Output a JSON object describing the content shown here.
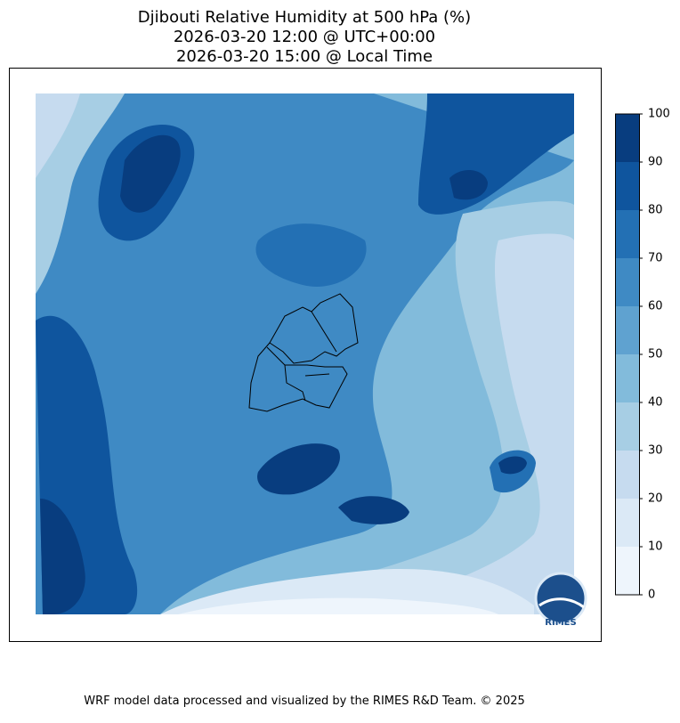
{
  "header": {
    "title_lines": [
      "Djibouti Relative Humidity at 500 hPa (%)",
      "2026-03-20 12:00 @ UTC+00:00",
      "2026-03-20 15:00 @ Local Time"
    ]
  },
  "colorbar": {
    "lim": [
      0,
      100
    ],
    "ticks": [
      0,
      10,
      20,
      30,
      40,
      50,
      60,
      70,
      80,
      90,
      100
    ],
    "colors": [
      "#eef5fc",
      "#dbe9f6",
      "#c6dbef",
      "#a7cee4",
      "#82bbdb",
      "#5fa2d0",
      "#3f8ac4",
      "#2370b4",
      "#0f559e",
      "#083d7f"
    ]
  },
  "logo": {
    "label": "RIMES"
  },
  "footer": {
    "text": "WRF model data processed and visualized by the RIMES R&D Team. © 2025"
  }
}
